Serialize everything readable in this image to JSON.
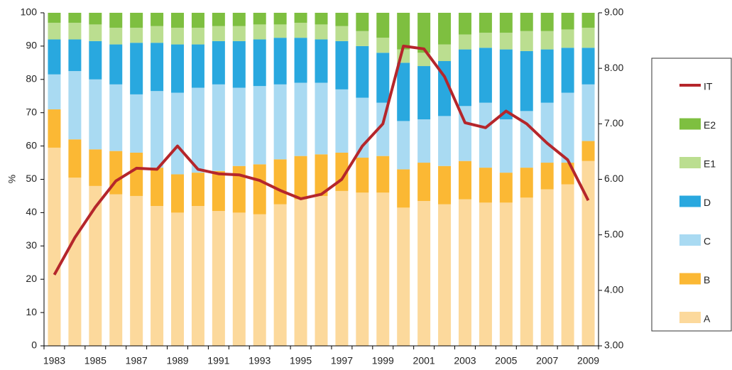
{
  "chart_data": {
    "type": "bar",
    "stacked": true,
    "y_label": "%",
    "categories": [
      "1983",
      null,
      "1985",
      null,
      "1987",
      null,
      "1989",
      null,
      "1991",
      null,
      "1993",
      null,
      "1995",
      null,
      "1997",
      null,
      "1999",
      null,
      "2001",
      null,
      "2003",
      null,
      "2005",
      null,
      "2007",
      null,
      "2009"
    ],
    "ylim": [
      0,
      100
    ],
    "yticks": [
      0,
      10,
      20,
      30,
      40,
      50,
      60,
      70,
      80,
      90,
      100
    ],
    "y2lim": [
      3,
      9
    ],
    "y2ticks": [
      {
        "value": 3,
        "label": "3.00"
      },
      {
        "value": 4,
        "label": "4.00"
      },
      {
        "value": 5,
        "label": "5.00"
      },
      {
        "value": 6,
        "label": "6.00"
      },
      {
        "value": 7,
        "label": "7.00"
      },
      {
        "value": 8,
        "label": "8.00"
      },
      {
        "value": 9,
        "label": "9.00"
      }
    ],
    "series": [
      {
        "name": "A",
        "color": "#fcd99c",
        "values": [
          59.5,
          50.5,
          48,
          45.5,
          45,
          42,
          40,
          42,
          40.5,
          40,
          39.5,
          42.5,
          44,
          45,
          46.5,
          46,
          46,
          41.5,
          43.5,
          42.5,
          44,
          43,
          43,
          44.5,
          47,
          48.5,
          55.5
        ]
      },
      {
        "name": "B",
        "color": "#fbb834",
        "values": [
          11.5,
          11.5,
          11,
          13,
          13,
          11.5,
          11.5,
          10,
          12,
          14,
          15,
          13.5,
          13,
          12.5,
          11.5,
          10.5,
          11,
          11.5,
          11.5,
          11.5,
          11.5,
          10.5,
          9,
          9,
          8,
          6.5,
          6
        ]
      },
      {
        "name": "C",
        "color": "#a9daf2",
        "values": [
          10.5,
          20.5,
          21,
          20,
          17.5,
          23,
          24.5,
          25.5,
          26,
          23.5,
          23.5,
          22.5,
          22,
          21.5,
          19,
          18,
          16,
          14.5,
          13,
          15,
          16.5,
          19.5,
          16,
          17,
          18,
          21,
          17
        ]
      },
      {
        "name": "D",
        "color": "#29a8df",
        "values": [
          10.5,
          9.5,
          11.5,
          12,
          15.5,
          14.5,
          14.5,
          13,
          13,
          14,
          14,
          14,
          13.5,
          13,
          14.5,
          15.5,
          15,
          17.5,
          16,
          16.5,
          17,
          16.5,
          21,
          18,
          16,
          13.5,
          11
        ]
      },
      {
        "name": "E1",
        "color": "#bbde90",
        "values": [
          5,
          5,
          5,
          5,
          4.5,
          5,
          5,
          5,
          4.5,
          4.5,
          4.5,
          4,
          4.5,
          4.5,
          4.5,
          4.5,
          4.5,
          4,
          4,
          5,
          4.5,
          4.5,
          5,
          6,
          5.5,
          5.5,
          6
        ]
      },
      {
        "name": "E2",
        "color": "#7ebf40",
        "values": [
          3,
          3,
          3.5,
          4.5,
          4.5,
          4,
          4.5,
          4.5,
          4,
          4,
          3.5,
          3.5,
          3,
          3.5,
          4,
          5.5,
          7.5,
          11,
          12,
          9.5,
          6.5,
          6,
          6,
          5.5,
          5.5,
          5,
          4.5
        ]
      },
      {
        "name": "IT",
        "color": "#b5262b",
        "axis": "y2",
        "type": "line",
        "values": [
          4.28,
          4.95,
          5.5,
          5.97,
          6.2,
          6.18,
          6.6,
          6.18,
          6.1,
          6.08,
          5.98,
          5.8,
          5.65,
          5.73,
          6.0,
          6.6,
          7.0,
          8.4,
          8.35,
          7.85,
          7.02,
          6.93,
          7.23,
          7.0,
          6.65,
          6.35,
          5.62
        ]
      }
    ]
  }
}
